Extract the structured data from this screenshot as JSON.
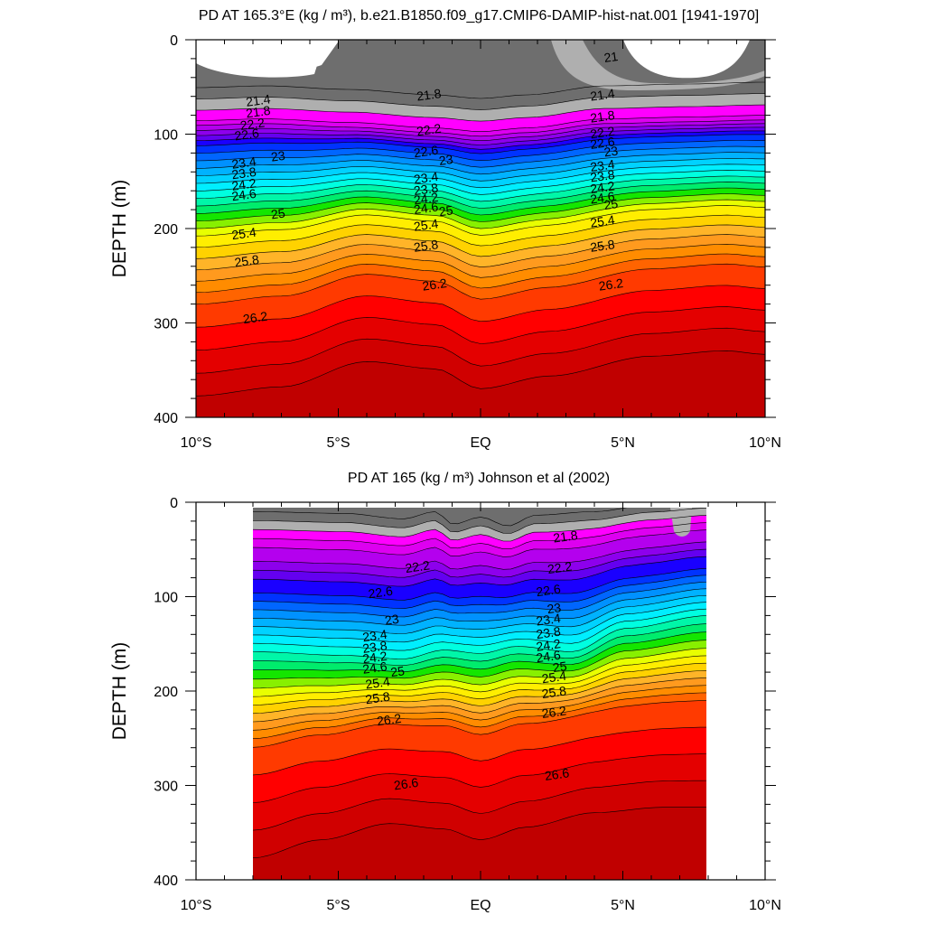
{
  "chart_data": [
    {
      "type": "contour",
      "title": "PD AT 165.3°E (kg / m³), b.e21.B1850.f09_g17.CMIP6-DAMIP-hist-nat.001 [1941-1970]",
      "xlabel": "",
      "ylabel": "DEPTH (m)",
      "xlim": [
        -10,
        10
      ],
      "ylim": [
        400,
        0
      ],
      "x_ticks": [
        -10,
        -5,
        0,
        5,
        10
      ],
      "x_tick_labels": [
        "10°S",
        "5°S",
        "EQ",
        "5°N",
        "10°N"
      ],
      "y_ticks": [
        0,
        100,
        200,
        300,
        400
      ],
      "y_tick_labels": [
        "0",
        "100",
        "200",
        "300",
        "400"
      ],
      "x_data_range": [
        -10,
        10
      ],
      "contour_interval": 0.2,
      "contour_labels": [
        {
          "text": "21",
          "lon": 4.6,
          "depth": 22
        },
        {
          "text": "21.4",
          "lon": -7.8,
          "depth": 68
        },
        {
          "text": "21.8",
          "lon": -7.8,
          "depth": 80
        },
        {
          "text": "22.2",
          "lon": -8.0,
          "depth": 93
        },
        {
          "text": "22.6",
          "lon": -8.2,
          "depth": 104
        },
        {
          "text": "21.8",
          "lon": -1.8,
          "depth": 62
        },
        {
          "text": "22.2",
          "lon": -1.8,
          "depth": 99
        },
        {
          "text": "22.6",
          "lon": -1.9,
          "depth": 122
        },
        {
          "text": "23",
          "lon": -1.2,
          "depth": 131
        },
        {
          "text": "23.4",
          "lon": -1.9,
          "depth": 150
        },
        {
          "text": "23.8",
          "lon": -1.9,
          "depth": 162
        },
        {
          "text": "24.2",
          "lon": -1.9,
          "depth": 172
        },
        {
          "text": "24.6",
          "lon": -1.9,
          "depth": 182
        },
        {
          "text": "25",
          "lon": -1.2,
          "depth": 185
        },
        {
          "text": "25.4",
          "lon": -1.9,
          "depth": 200
        },
        {
          "text": "25.8",
          "lon": -1.9,
          "depth": 222
        },
        {
          "text": "26.2",
          "lon": -1.6,
          "depth": 263
        },
        {
          "text": "23",
          "lon": -7.1,
          "depth": 127
        },
        {
          "text": "23.4",
          "lon": -8.3,
          "depth": 134
        },
        {
          "text": "23.8",
          "lon": -8.3,
          "depth": 145
        },
        {
          "text": "24.2",
          "lon": -8.3,
          "depth": 157
        },
        {
          "text": "24.6",
          "lon": -8.3,
          "depth": 168
        },
        {
          "text": "25",
          "lon": -7.1,
          "depth": 188
        },
        {
          "text": "25.4",
          "lon": -8.3,
          "depth": 209
        },
        {
          "text": "25.8",
          "lon": -8.2,
          "depth": 238
        },
        {
          "text": "26.2",
          "lon": -7.9,
          "depth": 298
        },
        {
          "text": "21.4",
          "lon": 4.3,
          "depth": 62
        },
        {
          "text": "21.8",
          "lon": 4.3,
          "depth": 85
        },
        {
          "text": "22.2",
          "lon": 4.3,
          "depth": 102
        },
        {
          "text": "22.6",
          "lon": 4.3,
          "depth": 113
        },
        {
          "text": "23",
          "lon": 4.6,
          "depth": 122
        },
        {
          "text": "23.4",
          "lon": 4.3,
          "depth": 137
        },
        {
          "text": "23.8",
          "lon": 4.3,
          "depth": 148
        },
        {
          "text": "24.2",
          "lon": 4.3,
          "depth": 160
        },
        {
          "text": "24.6",
          "lon": 4.3,
          "depth": 171
        },
        {
          "text": "25",
          "lon": 4.6,
          "depth": 178
        },
        {
          "text": "25.4",
          "lon": 4.3,
          "depth": 196
        },
        {
          "text": "25.8",
          "lon": 4.3,
          "depth": 222
        },
        {
          "text": "26.2",
          "lon": 4.6,
          "depth": 263
        }
      ]
    },
    {
      "type": "contour",
      "title": "PD AT 165 (kg / m³) Johnson et al (2002)",
      "xlabel": "",
      "ylabel": "DEPTH (m)",
      "xlim": [
        -10,
        10
      ],
      "ylim": [
        400,
        0
      ],
      "x_ticks": [
        -10,
        -5,
        0,
        5,
        10
      ],
      "x_tick_labels": [
        "10°S",
        "5°S",
        "EQ",
        "5°N",
        "10°N"
      ],
      "y_ticks": [
        0,
        100,
        200,
        300,
        400
      ],
      "y_tick_labels": [
        "0",
        "100",
        "200",
        "300",
        "400"
      ],
      "x_data_range": [
        -8,
        8
      ],
      "contour_interval": 0.2,
      "contour_labels": [
        {
          "text": "21.8",
          "lon": 3.0,
          "depth": 40
        },
        {
          "text": "22.2",
          "lon": -2.2,
          "depth": 72
        },
        {
          "text": "22.2",
          "lon": 2.8,
          "depth": 73
        },
        {
          "text": "22.6",
          "lon": -3.5,
          "depth": 99
        },
        {
          "text": "22.6",
          "lon": 2.4,
          "depth": 97
        },
        {
          "text": "23",
          "lon": -3.1,
          "depth": 128
        },
        {
          "text": "23",
          "lon": 2.6,
          "depth": 116
        },
        {
          "text": "23.4",
          "lon": 2.4,
          "depth": 128
        },
        {
          "text": "23.4",
          "lon": -3.7,
          "depth": 145
        },
        {
          "text": "23.8",
          "lon": 2.4,
          "depth": 142
        },
        {
          "text": "23.8",
          "lon": -3.7,
          "depth": 157
        },
        {
          "text": "24.2",
          "lon": 2.4,
          "depth": 155
        },
        {
          "text": "24.2",
          "lon": -3.7,
          "depth": 168
        },
        {
          "text": "24.6",
          "lon": 2.4,
          "depth": 167
        },
        {
          "text": "24.6",
          "lon": -3.7,
          "depth": 179
        },
        {
          "text": "25",
          "lon": -2.9,
          "depth": 183
        },
        {
          "text": "25",
          "lon": 2.8,
          "depth": 178
        },
        {
          "text": "25.4",
          "lon": -3.6,
          "depth": 195
        },
        {
          "text": "25.4",
          "lon": 2.6,
          "depth": 189
        },
        {
          "text": "25.8",
          "lon": -3.6,
          "depth": 211
        },
        {
          "text": "25.8",
          "lon": 2.6,
          "depth": 205
        },
        {
          "text": "26.2",
          "lon": -3.2,
          "depth": 234
        },
        {
          "text": "26.2",
          "lon": 2.6,
          "depth": 226
        },
        {
          "text": "26.6",
          "lon": -2.6,
          "depth": 302
        },
        {
          "text": "26.6",
          "lon": 2.7,
          "depth": 292
        }
      ]
    }
  ],
  "colors": {
    "fill_bands": [
      "#6e6e6e",
      "#afafaf",
      "#ff00ff",
      "#dd00f0",
      "#b400ee",
      "#8d00ec",
      "#6400f0",
      "#1a00ff",
      "#0033ff",
      "#0066ff",
      "#0091ff",
      "#00b2ff",
      "#00d2ff",
      "#00eeff",
      "#00ffe0",
      "#00f6a8",
      "#00ec6c",
      "#14e600",
      "#88f000",
      "#e8ff00",
      "#ffee00",
      "#ffd200",
      "#ffb428",
      "#ff9a1e",
      "#ff8c00",
      "#ff6400",
      "#ff3a00",
      "#ff0000",
      "#e40000",
      "#d00000",
      "#c00000"
    ],
    "contour_line": "#000000"
  }
}
